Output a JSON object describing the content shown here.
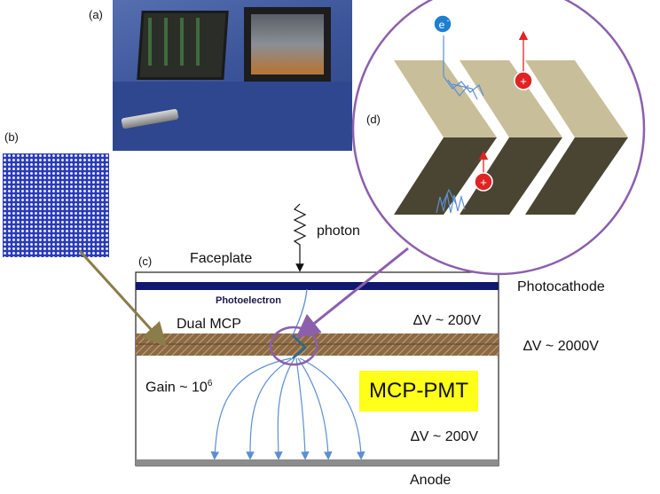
{
  "labels": {
    "panel_a": "(a)",
    "panel_b": "(b)",
    "panel_c": "(c)",
    "panel_d": "(d)",
    "photon": "photon",
    "faceplate": "Faceplate",
    "photocathode": "Photocathode",
    "photoelectron": "Photoelectron",
    "dual_mcp": "Dual MCP",
    "dv_top": "∆V ~ 200V",
    "dv_total": "∆V ~ 2000V",
    "gain_prefix": "Gain ~ 10",
    "gain_exp": "6",
    "mcp_pmt": "MCP-PMT",
    "dv_bottom": "∆V ~ 200V",
    "anode": "Anode",
    "electron_symbol": "e",
    "electron_charge": "-",
    "ion_symbol": "+"
  },
  "colors": {
    "photocathode": "#0f1a6e",
    "mcp_layer": "#8b6a45",
    "anode": "#8c8c8c",
    "field_lines": "#5b8fd0",
    "zoom_circle": "#8c5fad",
    "chevron_light": "#c8bf9a",
    "chevron_dark": "#4a4532",
    "ion": "#e02424",
    "electron": "#1f7fcf",
    "highlight_box": "#ffff1a",
    "olive_arrow": "#8a7d4a"
  },
  "icons": {
    "photo_a": "mcp-pmt-device-photo",
    "photo_b": "microchannel-plate-micrograph",
    "electron": "electron-icon",
    "ion": "ion-icon"
  }
}
